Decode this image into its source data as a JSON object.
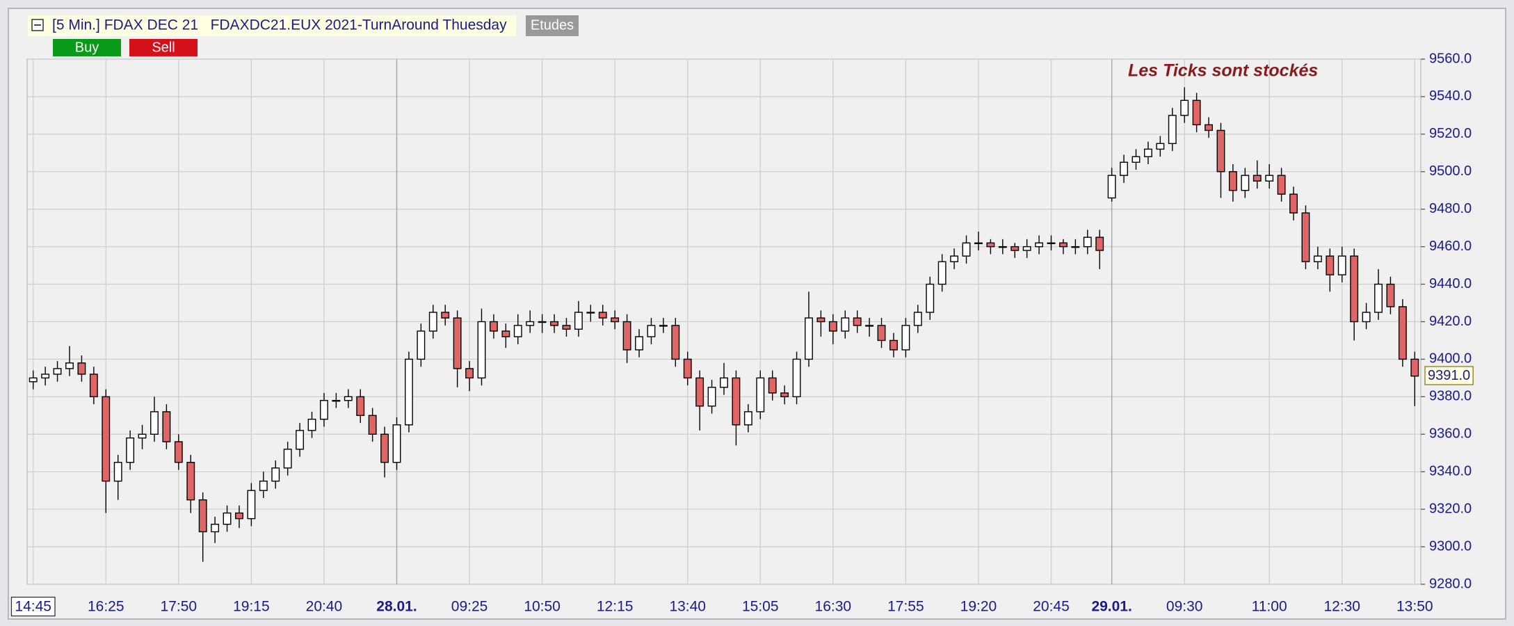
{
  "chart_data": {
    "type": "candlestick",
    "title": "[5 Min.] FDAX DEC 21   FDAXDC21.EUX 2021-TurnAround Thuesday",
    "toolbar": {
      "studies": "Etudes",
      "buy": "Buy",
      "sell": "Sell"
    },
    "annotation": "Les Ticks sont stockés",
    "last_price_label": "9391.0",
    "up_color": "#ffffff",
    "down_color": "#e06666",
    "grid": true,
    "categories": [
      "14:45",
      null,
      null,
      null,
      null,
      null,
      "16:25",
      null,
      null,
      null,
      null,
      null,
      "17:50",
      null,
      null,
      null,
      null,
      null,
      "19:15",
      null,
      null,
      null,
      null,
      null,
      "20:40",
      null,
      null,
      null,
      null,
      null,
      "28.01.",
      null,
      null,
      null,
      null,
      null,
      "09:25",
      null,
      null,
      null,
      null,
      null,
      "10:50",
      null,
      null,
      null,
      null,
      null,
      "12:15",
      null,
      null,
      null,
      null,
      null,
      "13:40",
      null,
      null,
      null,
      null,
      null,
      "15:05",
      null,
      null,
      null,
      null,
      null,
      "16:30",
      null,
      null,
      null,
      null,
      null,
      "17:55",
      null,
      null,
      null,
      null,
      null,
      "19:20",
      null,
      null,
      null,
      null,
      null,
      "20:45",
      null,
      null,
      null,
      null,
      "29.01.",
      null,
      null,
      null,
      null,
      null,
      "09:30",
      null,
      null,
      null,
      null,
      null,
      null,
      "11:00",
      null,
      null,
      null,
      null,
      null,
      "12:30",
      null,
      null,
      null,
      null,
      null,
      "13:50"
    ],
    "open": [
      9388,
      9390,
      9392,
      9395,
      9398,
      9392,
      9380,
      9335,
      9345,
      9358,
      9360,
      9372,
      9356,
      9345,
      9325,
      9308,
      9312,
      9318,
      9315,
      9330,
      9335,
      9342,
      9352,
      9362,
      9368,
      9378,
      9378,
      9380,
      9370,
      9360,
      9345,
      9365,
      9400,
      9415,
      9425,
      9422,
      9395,
      9390,
      9420,
      9415,
      9412,
      9418,
      9420,
      9420,
      9418,
      9416,
      9425,
      9425,
      9422,
      9420,
      9405,
      9412,
      9418,
      9418,
      9400,
      9390,
      9375,
      9385,
      9390,
      9365,
      9372,
      9390,
      9382,
      9380,
      9400,
      9422,
      9420,
      9415,
      9422,
      9418,
      9418,
      9410,
      9405,
      9418,
      9425,
      9440,
      9452,
      9455,
      9462,
      9462,
      9460,
      9460,
      9458,
      9460,
      9462,
      9462,
      9460,
      9460,
      9465,
      9486,
      9498,
      9505,
      9508,
      9512,
      9515,
      9530,
      9538,
      9525,
      9522,
      9500,
      9490,
      9498,
      9495,
      9498,
      9488,
      9478,
      9452,
      9455,
      9445,
      9455,
      9420,
      9425,
      9440,
      9428,
      9400
    ],
    "high": [
      9394,
      9396,
      9399,
      9407,
      9402,
      9396,
      9384,
      9349,
      9362,
      9365,
      9380,
      9376,
      9360,
      9349,
      9329,
      9316,
      9322,
      9322,
      9334,
      9340,
      9346,
      9356,
      9366,
      9372,
      9382,
      9382,
      9384,
      9384,
      9374,
      9364,
      9369,
      9404,
      9419,
      9429,
      9429,
      9426,
      9399,
      9427,
      9424,
      9419,
      9424,
      9426,
      9424,
      9424,
      9422,
      9431,
      9429,
      9429,
      9426,
      9424,
      9416,
      9422,
      9422,
      9422,
      9404,
      9394,
      9389,
      9398,
      9394,
      9376,
      9394,
      9394,
      9386,
      9404,
      9436,
      9426,
      9424,
      9426,
      9426,
      9422,
      9422,
      9414,
      9422,
      9429,
      9444,
      9456,
      9459,
      9466,
      9468,
      9464,
      9464,
      9462,
      9464,
      9466,
      9466,
      9464,
      9464,
      9469,
      9469,
      9502,
      9509,
      9512,
      9516,
      9519,
      9534,
      9545,
      9542,
      9529,
      9526,
      9504,
      9502,
      9506,
      9504,
      9502,
      9492,
      9482,
      9460,
      9459,
      9460,
      9459,
      9430,
      9448,
      9444,
      9432,
      9404
    ],
    "low": [
      9384,
      9386,
      9388,
      9391,
      9388,
      9376,
      9318,
      9325,
      9341,
      9352,
      9356,
      9352,
      9341,
      9318,
      9292,
      9302,
      9308,
      9310,
      9311,
      9326,
      9331,
      9338,
      9348,
      9358,
      9364,
      9374,
      9374,
      9366,
      9356,
      9337,
      9341,
      9361,
      9396,
      9411,
      9418,
      9385,
      9383,
      9386,
      9411,
      9406,
      9408,
      9414,
      9414,
      9414,
      9412,
      9412,
      9420,
      9418,
      9416,
      9398,
      9401,
      9408,
      9414,
      9396,
      9386,
      9362,
      9371,
      9381,
      9354,
      9361,
      9368,
      9378,
      9376,
      9376,
      9396,
      9412,
      9408,
      9411,
      9414,
      9412,
      9406,
      9401,
      9401,
      9414,
      9421,
      9436,
      9448,
      9451,
      9458,
      9456,
      9456,
      9454,
      9454,
      9456,
      9458,
      9456,
      9456,
      9456,
      9448,
      9484,
      9494,
      9501,
      9504,
      9508,
      9511,
      9526,
      9521,
      9518,
      9486,
      9484,
      9486,
      9491,
      9491,
      9484,
      9474,
      9448,
      9448,
      9436,
      9441,
      9410,
      9416,
      9421,
      9424,
      9396,
      9375
    ],
    "close": [
      9390,
      9392,
      9395,
      9398,
      9392,
      9380,
      9335,
      9345,
      9358,
      9360,
      9372,
      9356,
      9345,
      9325,
      9308,
      9312,
      9318,
      9315,
      9330,
      9335,
      9342,
      9352,
      9362,
      9368,
      9378,
      9378,
      9380,
      9370,
      9360,
      9345,
      9365,
      9400,
      9415,
      9425,
      9422,
      9395,
      9390,
      9420,
      9415,
      9412,
      9418,
      9420,
      9420,
      9418,
      9416,
      9425,
      9425,
      9422,
      9420,
      9405,
      9412,
      9418,
      9418,
      9400,
      9390,
      9375,
      9385,
      9390,
      9365,
      9372,
      9390,
      9382,
      9380,
      9400,
      9422,
      9420,
      9415,
      9422,
      9418,
      9418,
      9410,
      9405,
      9418,
      9425,
      9440,
      9452,
      9455,
      9462,
      9462,
      9460,
      9460,
      9458,
      9460,
      9462,
      9462,
      9460,
      9460,
      9465,
      9458,
      9498,
      9505,
      9508,
      9512,
      9515,
      9530,
      9538,
      9525,
      9522,
      9500,
      9490,
      9498,
      9495,
      9498,
      9488,
      9478,
      9452,
      9455,
      9445,
      9455,
      9420,
      9425,
      9440,
      9428,
      9400,
      9391
    ],
    "ylim": [
      9280,
      9560
    ],
    "yticks": [
      {
        "value": 9280,
        "label": "9280.0"
      },
      {
        "value": 9300,
        "label": "9300.0"
      },
      {
        "value": 9320,
        "label": "9320.0"
      },
      {
        "value": 9340,
        "label": "9340.0"
      },
      {
        "value": 9360,
        "label": "9360.0"
      },
      {
        "value": 9380,
        "label": "9380.0"
      },
      {
        "value": 9400,
        "label": "9400.0"
      },
      {
        "value": 9420,
        "label": "9420.0"
      },
      {
        "value": 9440,
        "label": "9440.0"
      },
      {
        "value": 9460,
        "label": "9460.0"
      },
      {
        "value": 9480,
        "label": "9480.0"
      },
      {
        "value": 9500,
        "label": "9500.0"
      },
      {
        "value": 9520,
        "label": "9520.0"
      },
      {
        "value": 9540,
        "label": "9540.0"
      },
      {
        "value": 9560,
        "label": "9560.0"
      }
    ]
  }
}
